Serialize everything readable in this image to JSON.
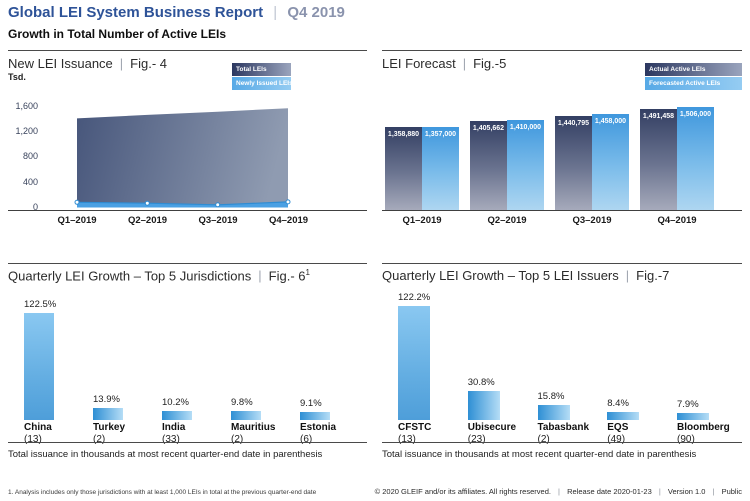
{
  "header": {
    "title": "Global LEI System Business Report",
    "separator": "|",
    "period": "Q4 2019",
    "subtitle": "Growth in Total Number of Active LEIs"
  },
  "colors": {
    "title_blue": "#2e5398",
    "period_blue": "#8a93ad",
    "dark_series_top": "#333f63",
    "dark_series_bottom": "#a6aabb",
    "light_series": "#4a9fe2",
    "bottom_bar_blue": "#4e9ed9",
    "axis": "#404040"
  },
  "chart_data": [
    {
      "id": "fig4",
      "type": "area",
      "title": "New LEI Issuance",
      "fig_label": "Fig.- 4",
      "ylabel": "Tsd.",
      "ylim": [
        0,
        1600
      ],
      "y_tick_labels": [
        "1,600",
        "1,200",
        "800",
        "400",
        "0"
      ],
      "categories": [
        "Q1–2019",
        "Q2–2019",
        "Q3–2019",
        "Q4–2019"
      ],
      "series": [
        {
          "name": "Total LEIs",
          "values": [
            1405,
            1460,
            1510,
            1565
          ]
        },
        {
          "name": "Newly Issued LEIs",
          "values": [
            90,
            75,
            50,
            95
          ]
        }
      ],
      "legend_position": "top-right",
      "grid": "off"
    },
    {
      "id": "fig5",
      "type": "bar",
      "title": "LEI Forecast",
      "fig_label": "Fig.-5",
      "categories": [
        "Q1–2019",
        "Q2–2019",
        "Q3–2019",
        "Q4–2019"
      ],
      "series": [
        {
          "name": "Actual Active LEIs",
          "values": [
            1358880,
            1405662,
            1440795,
            1491458
          ],
          "labels": [
            "1,358,880",
            "1,405,662",
            "1,440,795",
            "1,491,458"
          ]
        },
        {
          "name": "Forecasted Active LEIs",
          "values": [
            1357000,
            1410000,
            1458000,
            1506000
          ],
          "labels": [
            "1,357,000",
            "1,410,000",
            "1,458,000",
            "1,506,000"
          ]
        }
      ],
      "legend_position": "top-right",
      "grid": "off"
    },
    {
      "id": "fig6",
      "type": "bar",
      "title": "Quarterly LEI Growth – Top 5 Jurisdictions",
      "fig_label": "Fig.- 6",
      "fig_superscript": "1",
      "categories": [
        "China",
        "Turkey",
        "India",
        "Mauritius",
        "Estonia"
      ],
      "category_counts": [
        "(13)",
        "(2)",
        "(33)",
        "(2)",
        "(6)"
      ],
      "values": [
        122.5,
        13.9,
        10.2,
        9.8,
        9.1
      ],
      "value_labels": [
        "122.5%",
        "13.9%",
        "10.2%",
        "9.8%",
        "9.1%"
      ],
      "note": "Total issuance in thousands at most recent quarter-end date in parenthesis",
      "grid": "off"
    },
    {
      "id": "fig7",
      "type": "bar",
      "title": "Quarterly LEI Growth – Top 5 LEI Issuers",
      "fig_label": "Fig.-7",
      "categories": [
        "CFSTC",
        "Ubisecure",
        "Tabasbank",
        "EQS",
        "Bloomberg"
      ],
      "category_counts": [
        "(13)",
        "(23)",
        "(2)",
        "(49)",
        "(90)"
      ],
      "values": [
        122.2,
        30.8,
        15.8,
        8.4,
        7.9
      ],
      "value_labels": [
        "122.2%",
        "30.8%",
        "15.8%",
        "8.4%",
        "7.9%"
      ],
      "note": "Total issuance in thousands at most recent quarter-end date in parenthesis",
      "grid": "off"
    }
  ],
  "footer": {
    "footnote": "1. Analysis includes only those jurisdictions with at least 1,000 LEIs in total at the previous quarter-end date",
    "copyright": "© 2020 GLEIF and/or its affiliates. All rights reserved.",
    "separator": "|",
    "release": "Release date 2020-01-23",
    "version": "Version 1.0",
    "visibility": "Public"
  }
}
